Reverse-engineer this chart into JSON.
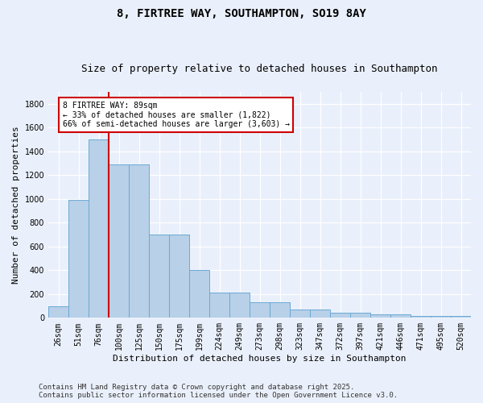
{
  "title_line1": "8, FIRTREE WAY, SOUTHAMPTON, SO19 8AY",
  "title_line2": "Size of property relative to detached houses in Southampton",
  "xlabel": "Distribution of detached houses by size in Southampton",
  "ylabel": "Number of detached properties",
  "categories": [
    "26sqm",
    "51sqm",
    "76sqm",
    "100sqm",
    "125sqm",
    "150sqm",
    "175sqm",
    "199sqm",
    "224sqm",
    "249sqm",
    "273sqm",
    "298sqm",
    "323sqm",
    "347sqm",
    "372sqm",
    "397sqm",
    "421sqm",
    "446sqm",
    "471sqm",
    "495sqm",
    "520sqm"
  ],
  "values": [
    100,
    990,
    1500,
    1290,
    1290,
    700,
    700,
    400,
    210,
    210,
    130,
    130,
    70,
    70,
    40,
    40,
    30,
    30,
    15,
    15,
    15
  ],
  "bar_color": "#b8d0e8",
  "bar_edge_color": "#6aaad4",
  "vline_x": 2.5,
  "vline_color": "#cc0000",
  "annotation_text": "8 FIRTREE WAY: 89sqm\n← 33% of detached houses are smaller (1,822)\n66% of semi-detached houses are larger (3,603) →",
  "annotation_box_color": "#ffffff",
  "annotation_box_edge": "#cc0000",
  "ylim": [
    0,
    1900
  ],
  "yticks": [
    0,
    200,
    400,
    600,
    800,
    1000,
    1200,
    1400,
    1600,
    1800
  ],
  "footnote": "Contains HM Land Registry data © Crown copyright and database right 2025.\nContains public sector information licensed under the Open Government Licence v3.0.",
  "bg_color": "#eaf0fb",
  "plot_bg_color": "#eaf0fb",
  "grid_color": "#ffffff",
  "title_fontsize": 10,
  "subtitle_fontsize": 9,
  "axis_label_fontsize": 8,
  "tick_fontsize": 7,
  "footnote_fontsize": 6.5,
  "annot_fontsize": 7
}
